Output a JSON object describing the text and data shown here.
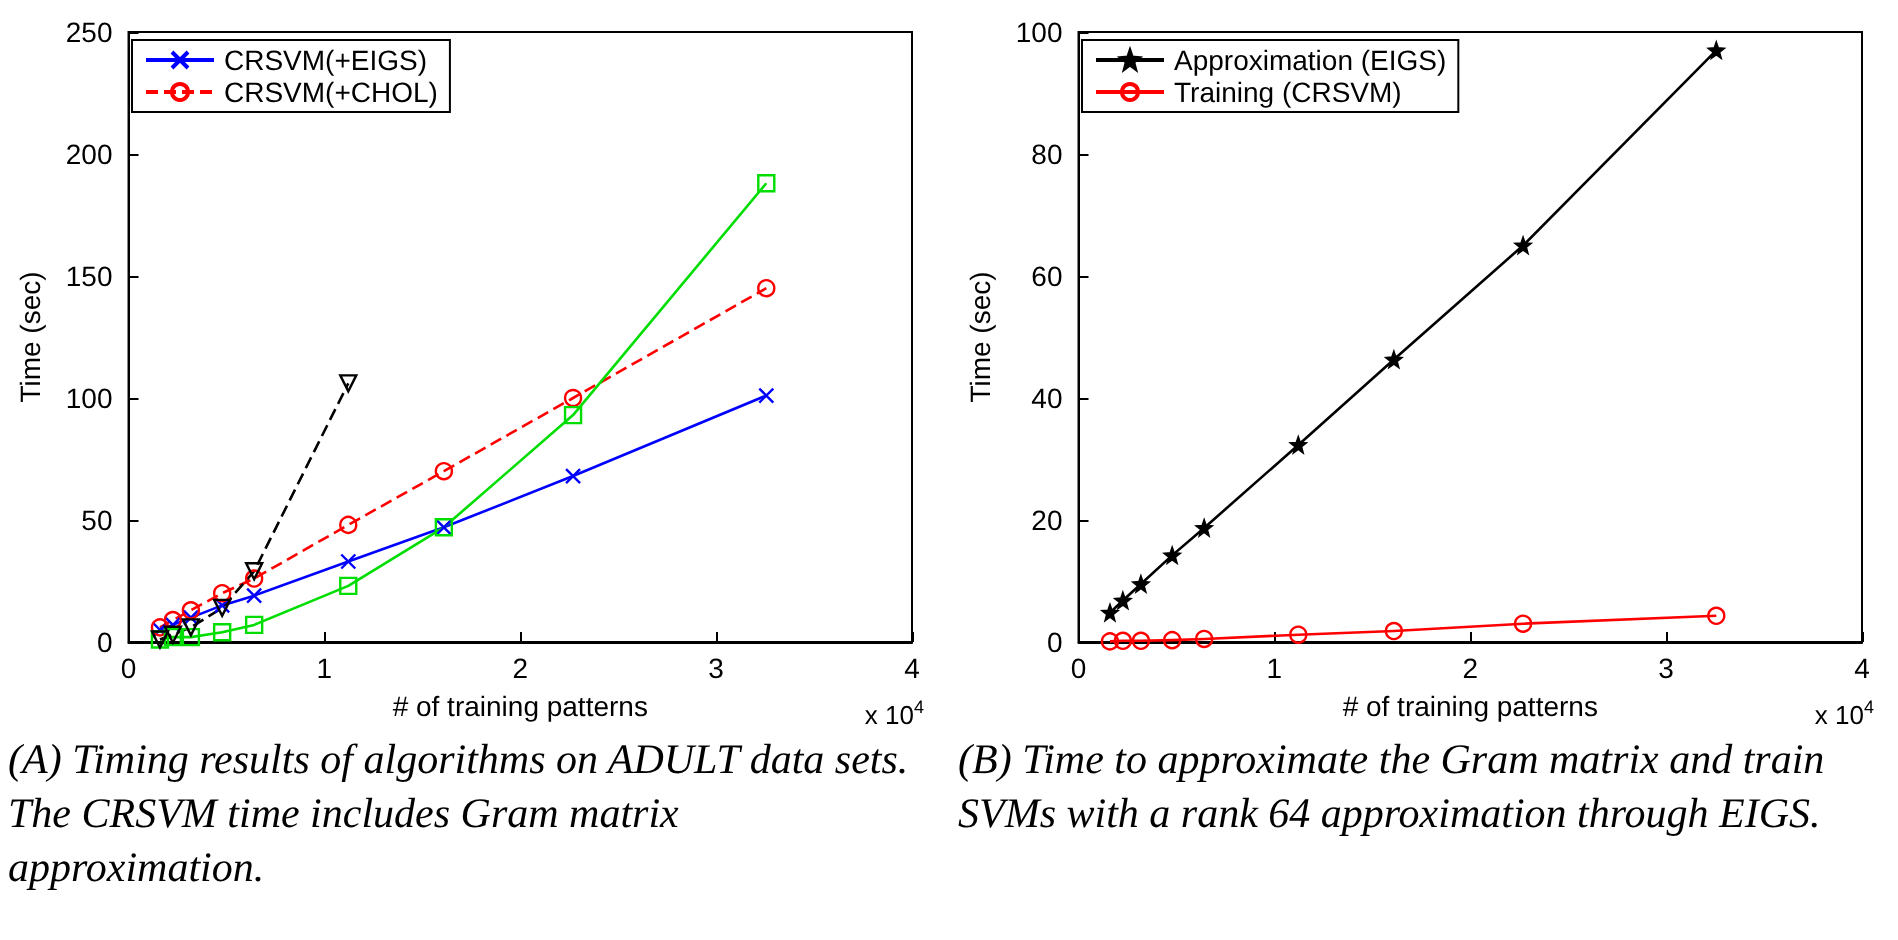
{
  "chart_data": [
    {
      "type": "line",
      "xlabel": "# of training patterns",
      "ylabel": "Time (sec)",
      "xlim": [
        0,
        4
      ],
      "xticks": [
        0,
        1,
        2,
        3,
        4
      ],
      "ylim": [
        0,
        250
      ],
      "yticks": [
        0,
        50,
        100,
        150,
        200,
        250
      ],
      "grid": false,
      "legend": "top left",
      "annotations": [
        "x 10$^{4}$",
        "(A) Timing results of algorithms on ADULT data sets. The CRSVM time includes Gram matrix approximation."
      ],
      "x": [
        0.1605,
        0.2265,
        0.3185,
        0.4781,
        0.6414,
        1.122,
        1.61,
        2.2696,
        3.2561
      ],
      "series": [
        {
          "name": "CRSVM(+EIGS)",
          "color": "#0000ff",
          "marker": "cross",
          "line_style": "solid",
          "values": [
            5,
            7,
            10,
            15,
            19,
            33,
            47,
            68,
            101
          ]
        },
        {
          "name": "CRSVM(+CHOL)",
          "color": "#ff0000",
          "marker": "circle",
          "line_style": "dashed",
          "values": [
            6,
            9,
            13,
            20,
            26,
            48,
            70,
            100,
            145
          ]
        },
        {
          "color": "#00dd00",
          "marker": "square",
          "line_style": "solid",
          "values": [
            1,
            2,
            2,
            4,
            7,
            23,
            47,
            93,
            188
          ]
        },
        {
          "color": "#000000",
          "marker": "triangle",
          "line_style": "dashed",
          "values": [
            1,
            3,
            6,
            14,
            29,
            106,
            null,
            null,
            null
          ]
        }
      ]
    },
    {
      "type": "line",
      "xlabel": "# of training patterns",
      "ylabel": "Time (sec)",
      "xlim": [
        0,
        4
      ],
      "xticks": [
        0,
        1,
        2,
        3,
        4
      ],
      "ylim": [
        0,
        100
      ],
      "yticks": [
        0,
        20,
        40,
        60,
        80,
        100
      ],
      "grid": false,
      "legend": "top left",
      "annotations": [
        "x 10$^{4}$",
        "(B) Time to approximate the Gram matrix and train SVMs with a rank 64 approximation through EIGS."
      ],
      "x": [
        0.1605,
        0.2265,
        0.3185,
        0.4781,
        0.6414,
        1.122,
        1.61,
        2.2696,
        3.2561
      ],
      "series": [
        {
          "name": "Approximation (EIGS)",
          "color": "#000000",
          "marker": "star",
          "line_style": "solid",
          "values": [
            4.8,
            6.8,
            9.5,
            14.2,
            18.7,
            32.3,
            46.3,
            65,
            97
          ]
        },
        {
          "name": "Training (CRSVM)",
          "color": "#ff0000",
          "marker": "circle",
          "line_style": "solid",
          "values": [
            0.1,
            0.2,
            0.2,
            0.3,
            0.5,
            1.2,
            1.8,
            3,
            4.3
          ]
        }
      ]
    }
  ]
}
